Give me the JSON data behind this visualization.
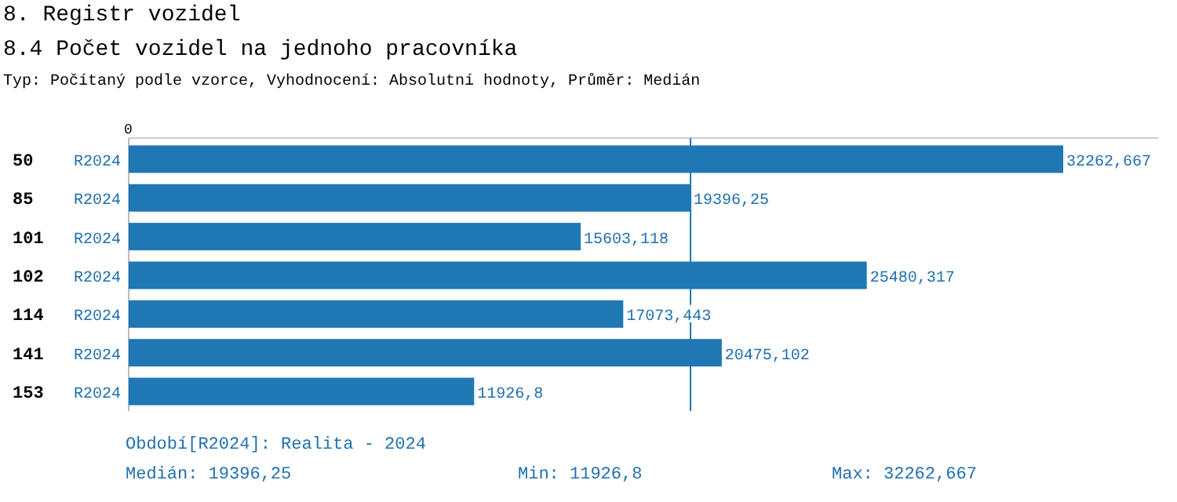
{
  "chart_data": {
    "type": "bar",
    "orientation": "horizontal",
    "title": "8. Registr vozidel",
    "subtitle": "8.4 Počet vozidel na jednoho pracovníka",
    "annotations": [
      "0",
      "Typ: Počítaný podle vzorce, Vyhodnocení: Absolutní hodnoty, Průměr: Medián",
      "Období[R2024]: Realita - 2024",
      "Medián: 19396,25",
      "Min: 11926,8",
      "Max: 32262,667"
    ],
    "categories": [
      "50",
      "85",
      "101",
      "102",
      "114",
      "141",
      "153"
    ],
    "series": [
      {
        "name": "R2024",
        "color": "#1f77b4",
        "values": [
          32262.667,
          19396.25,
          15603.118,
          25480.317,
          17073.443,
          20475.102,
          11926.8
        ],
        "value_labels": [
          "32262,667",
          "19396,25",
          "15603,118",
          "25480,317",
          "17073,443",
          "20475,102",
          "11926,8"
        ]
      }
    ],
    "xlim": [
      0,
      35540
    ],
    "ref_lines": [
      {
        "axis": "x",
        "value": 19396.25,
        "color": "#1f77b4"
      }
    ]
  }
}
